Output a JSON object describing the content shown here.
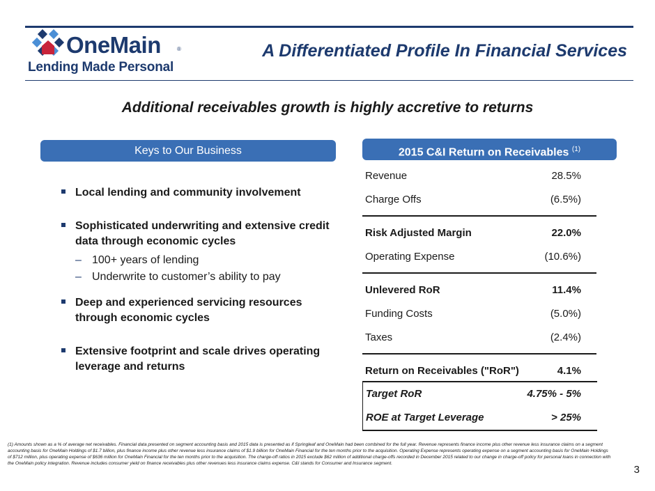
{
  "header": {
    "logo_name": "OneMain",
    "logo_reg": "®",
    "logo_tagline": "Lending Made Personal",
    "title": "A Differentiated Profile In Financial Services"
  },
  "subtitle": "Additional receivables growth is highly accretive to returns",
  "left_panel": {
    "heading": "Keys to Our Business",
    "bullets": [
      {
        "text": "Local lending and community involvement"
      },
      {
        "text": "Sophisticated underwriting and extensive credit data through economic cycles",
        "subs": [
          "100+ years of lending",
          "Underwrite to customer’s ability to pay"
        ]
      },
      {
        "text": "Deep and experienced servicing resources through economic cycles"
      },
      {
        "text": "Extensive footprint and scale drives operating leverage and returns"
      }
    ]
  },
  "right_panel": {
    "heading": "2015 C&I Return on Receivables",
    "heading_footnote": "(1)",
    "rows": [
      {
        "label": "Revenue",
        "value": "28.5%"
      },
      {
        "label": "Charge Offs",
        "value": "(6.5%)"
      },
      {
        "label": "Risk Adjusted Margin",
        "value": "22.0%"
      },
      {
        "label": "Operating Expense",
        "value": "(10.6%)"
      },
      {
        "label": "Unlevered RoR",
        "value": "11.4%"
      },
      {
        "label": "Funding Costs",
        "value": "(5.0%)"
      },
      {
        "label": "Taxes",
        "value": "(2.4%)"
      },
      {
        "label": "Return on Receivables (\"RoR\")",
        "value": "4.1%"
      }
    ],
    "targets": [
      {
        "label": "Target RoR",
        "value": "4.75% - 5%"
      },
      {
        "label": "ROE at Target Leverage",
        "value": "> 25%"
      }
    ]
  },
  "footnote": "(1)  Amounts shown as a % of average net receivables.  Financial data presented on segment accounting basis and 2015 data is presented as if Springleaf and OneMain had been combined for the full year. Revenue represents finance income plus other revenue less insurance claims on a segment accounting basis for OneMain Holdings of $1.7 billion, plus finance income plus other revenue less insurance claims of $1.9 billion for OneMain Financial for the ten months prior to the acquisition. Operating Expense represents operating expense on a segment accounting basis for OneMain Holdings of $712 million, plus operating expense of $636 million for OneMain Financial for the ten months prior to the acquisition. The charge-off ratios in 2015 exclude $62 million of additional charge-offs recorded in December 2015 related to our change in charge-off policy for personal loans in connection with the OneMain policy integration. Revenue includes consumer yield on finance receivables plus other revenues less insurance claims expense. C&I stands for Consumer and Insurance segment.",
  "page_number": "3",
  "colors": {
    "brand_navy": "#1d3a6e",
    "pill_blue": "#3a6fb5",
    "logo_red": "#c8243a",
    "logo_light_blue": "#4b8fd6"
  }
}
